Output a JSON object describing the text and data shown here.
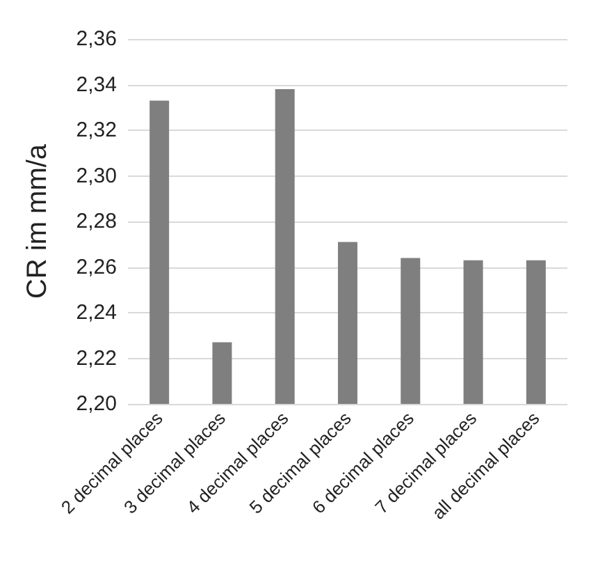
{
  "chart_data": {
    "type": "bar",
    "ylabel": "CR im mm/a",
    "categories": [
      "2 decimal places",
      "3 decimal places",
      "4 decimal places",
      "5 decimal places",
      "6 decimal places",
      "7 decimal places",
      "all decimal places"
    ],
    "values": [
      2.333,
      2.227,
      2.338,
      2.271,
      2.264,
      2.263,
      2.263
    ],
    "color": "#7f7f7f",
    "ylim": [
      2.2,
      2.36
    ],
    "yticks": [
      {
        "value": 2.2,
        "label": "2,20"
      },
      {
        "value": 2.22,
        "label": "2,22"
      },
      {
        "value": 2.24,
        "label": "2,24"
      },
      {
        "value": 2.26,
        "label": "2,26"
      },
      {
        "value": 2.28,
        "label": "2,28"
      },
      {
        "value": 2.3,
        "label": "2,30"
      },
      {
        "value": 2.32,
        "label": "2,32"
      },
      {
        "value": 2.34,
        "label": "2,34"
      },
      {
        "value": 2.36,
        "label": "2,36"
      }
    ],
    "grid": "y"
  }
}
